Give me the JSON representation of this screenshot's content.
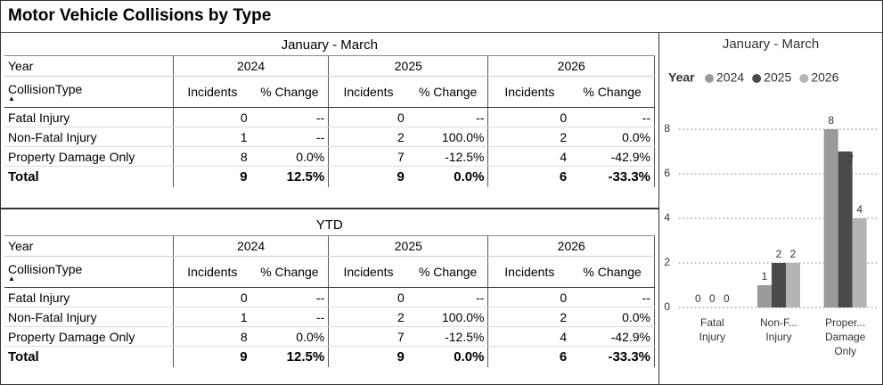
{
  "title": "Motor Vehicle Collisions by Type",
  "tables": [
    {
      "caption": "January - March",
      "year_header": "Year",
      "years": [
        "2024",
        "2025",
        "2026"
      ],
      "type_header": "CollisionType",
      "measures": [
        "Incidents",
        "% Change"
      ],
      "rows": [
        [
          "Fatal Injury",
          "0",
          "--",
          "0",
          "--",
          "0",
          "--"
        ],
        [
          "Non-Fatal Injury",
          "1",
          "--",
          "2",
          "100.0%",
          "2",
          "0.0%"
        ],
        [
          "Property Damage Only",
          "8",
          "0.0%",
          "7",
          "-12.5%",
          "4",
          "-42.9%"
        ]
      ],
      "total": [
        "Total",
        "9",
        "12.5%",
        "9",
        "0.0%",
        "6",
        "-33.3%"
      ]
    },
    {
      "caption": "YTD",
      "year_header": "Year",
      "years": [
        "2024",
        "2025",
        "2026"
      ],
      "type_header": "CollisionType",
      "measures": [
        "Incidents",
        "% Change"
      ],
      "rows": [
        [
          "Fatal Injury",
          "0",
          "--",
          "0",
          "--",
          "0",
          "--"
        ],
        [
          "Non-Fatal Injury",
          "1",
          "--",
          "2",
          "100.0%",
          "2",
          "0.0%"
        ],
        [
          "Property Damage Only",
          "8",
          "0.0%",
          "7",
          "-12.5%",
          "4",
          "-42.9%"
        ]
      ],
      "total": [
        "Total",
        "9",
        "12.5%",
        "9",
        "0.0%",
        "6",
        "-33.3%"
      ]
    }
  ],
  "chart_data": {
    "type": "bar",
    "title": "January - March",
    "legend_title": "Year",
    "categories": [
      "Fatal Injury",
      "Non-F... Injury",
      "Proper... Damage Only"
    ],
    "series": [
      {
        "name": "2024",
        "color": "#9a9a9a",
        "values": [
          0,
          1,
          8
        ]
      },
      {
        "name": "2025",
        "color": "#4a4a4a",
        "values": [
          0,
          2,
          7
        ]
      },
      {
        "name": "2026",
        "color": "#b4b4b4",
        "values": [
          0,
          2,
          4
        ]
      }
    ],
    "ylim": [
      0,
      8.6
    ],
    "yticks": [
      0,
      2,
      4,
      6,
      8
    ],
    "grid": true,
    "legend": "top"
  }
}
